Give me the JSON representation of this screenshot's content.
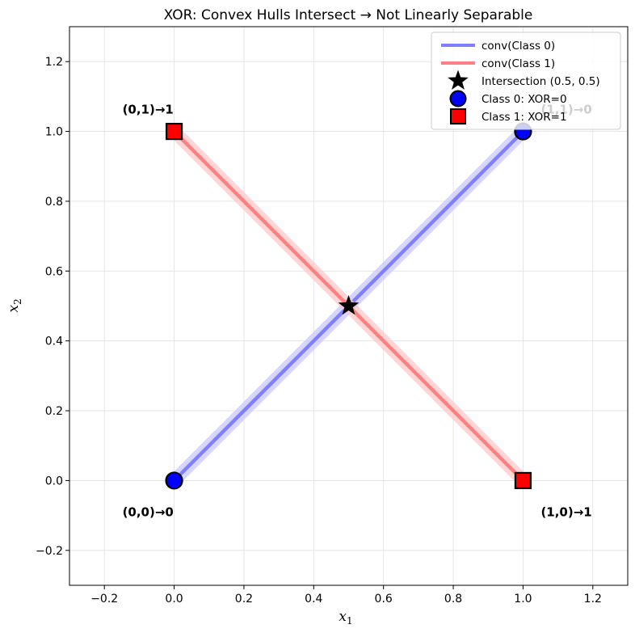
{
  "chart_data": {
    "type": "scatter",
    "title": "XOR: Convex Hulls Intersect → Not Linearly Separable",
    "xlabel": "x",
    "xlabel_sub": "1",
    "ylabel": "x",
    "ylabel_sub": "2",
    "xlim": [
      -0.3,
      1.3
    ],
    "ylim": [
      -0.3,
      1.3
    ],
    "xticks": [
      -0.2,
      0.0,
      0.2,
      0.4,
      0.6,
      0.8,
      1.0,
      1.2
    ],
    "yticks": [
      -0.2,
      0.0,
      0.2,
      0.4,
      0.6,
      0.8,
      1.0,
      1.2
    ],
    "xtick_labels": [
      "−0.2",
      "0.0",
      "0.2",
      "0.4",
      "0.6",
      "0.8",
      "1.0",
      "1.2"
    ],
    "ytick_labels": [
      "−0.2",
      "0.0",
      "0.2",
      "0.4",
      "0.6",
      "0.8",
      "1.0",
      "1.2"
    ],
    "grid": true,
    "legend_position": "top-right",
    "hulls": [
      {
        "name": "conv(Class 0)",
        "color": "#8080ff",
        "points": [
          [
            0,
            0
          ],
          [
            1,
            1
          ]
        ]
      },
      {
        "name": "conv(Class 1)",
        "color": "#ff8080",
        "points": [
          [
            0,
            1
          ],
          [
            1,
            0
          ]
        ]
      }
    ],
    "intersection": {
      "name": "Intersection (0.5, 0.5)",
      "x": 0.5,
      "y": 0.5
    },
    "series": [
      {
        "name": "Class 0: XOR=0",
        "marker": "circle",
        "color": "#0000ff",
        "points": [
          [
            0,
            0
          ],
          [
            1,
            1
          ]
        ]
      },
      {
        "name": "Class 1: XOR=1",
        "marker": "square",
        "color": "#ff0000",
        "points": [
          [
            0,
            1
          ],
          [
            1,
            0
          ]
        ]
      }
    ],
    "annotations": [
      {
        "text": "(0,0)→0",
        "x": 0,
        "y": 0,
        "position": "below-left"
      },
      {
        "text": "(1,1)→0",
        "x": 1,
        "y": 1,
        "position": "above-right"
      },
      {
        "text": "(0,1)→1",
        "x": 0,
        "y": 1,
        "position": "above-left"
      },
      {
        "text": "(1,0)→1",
        "x": 1,
        "y": 0,
        "position": "below-right"
      }
    ]
  }
}
